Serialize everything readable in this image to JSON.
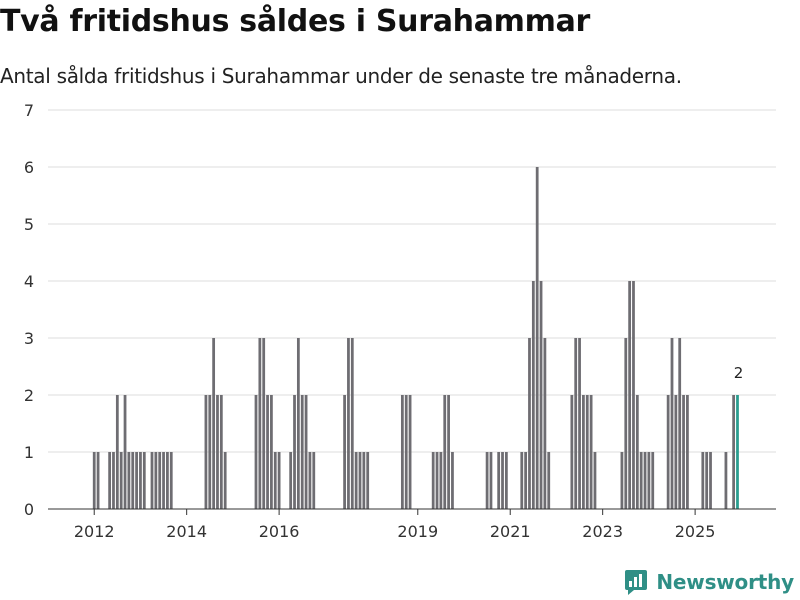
{
  "title": "Två fritidshus såldes i Surahammar",
  "subtitle": "Antal sålda fritidshus i Surahammar under de senaste tre månaderna.",
  "brand": {
    "name": "Newsworthy",
    "icon": "newsworthy-logo-icon"
  },
  "colors": {
    "bar": "#6e6d72",
    "highlight": "#2a9d8f",
    "grid": "#dcdcdc",
    "axis": "#333333"
  },
  "chart_data": {
    "type": "bar",
    "title": "",
    "xlabel": "",
    "ylabel": "",
    "ylim": [
      0,
      7
    ],
    "yticks": [
      0,
      1,
      2,
      3,
      4,
      5,
      6,
      7
    ],
    "grid": true,
    "xlim": [
      "2011-01",
      "2026-10"
    ],
    "xticks": [
      {
        "label": "2012",
        "month": "2012-01"
      },
      {
        "label": "2014",
        "month": "2014-01"
      },
      {
        "label": "2016",
        "month": "2016-01"
      },
      {
        "label": "2019",
        "month": "2019-01"
      },
      {
        "label": "2021",
        "month": "2021-01"
      },
      {
        "label": "2023",
        "month": "2023-01"
      },
      {
        "label": "2025",
        "month": "2025-01"
      }
    ],
    "series": [
      {
        "values": [
          [
            "2012-01",
            1
          ],
          [
            "2012-02",
            1
          ],
          [
            "2012-05",
            1
          ],
          [
            "2012-06",
            1
          ],
          [
            "2012-07",
            2
          ],
          [
            "2012-08",
            1
          ],
          [
            "2012-09",
            2
          ],
          [
            "2012-10",
            1
          ],
          [
            "2012-11",
            1
          ],
          [
            "2012-12",
            1
          ],
          [
            "2013-01",
            1
          ],
          [
            "2013-02",
            1
          ],
          [
            "2013-04",
            1
          ],
          [
            "2013-05",
            1
          ],
          [
            "2013-06",
            1
          ],
          [
            "2013-07",
            1
          ],
          [
            "2013-08",
            1
          ],
          [
            "2013-09",
            1
          ],
          [
            "2014-06",
            2
          ],
          [
            "2014-07",
            2
          ],
          [
            "2014-08",
            3
          ],
          [
            "2014-09",
            2
          ],
          [
            "2014-10",
            2
          ],
          [
            "2014-11",
            1
          ],
          [
            "2015-07",
            2
          ],
          [
            "2015-08",
            3
          ],
          [
            "2015-09",
            3
          ],
          [
            "2015-10",
            2
          ],
          [
            "2015-11",
            2
          ],
          [
            "2015-12",
            1
          ],
          [
            "2016-01",
            1
          ],
          [
            "2016-04",
            1
          ],
          [
            "2016-05",
            2
          ],
          [
            "2016-06",
            3
          ],
          [
            "2016-07",
            2
          ],
          [
            "2016-08",
            2
          ],
          [
            "2016-09",
            1
          ],
          [
            "2016-10",
            1
          ],
          [
            "2017-06",
            2
          ],
          [
            "2017-07",
            3
          ],
          [
            "2017-08",
            3
          ],
          [
            "2017-09",
            1
          ],
          [
            "2017-10",
            1
          ],
          [
            "2017-11",
            1
          ],
          [
            "2017-12",
            1
          ],
          [
            "2018-09",
            2
          ],
          [
            "2018-10",
            2
          ],
          [
            "2018-11",
            2
          ],
          [
            "2019-05",
            1
          ],
          [
            "2019-06",
            1
          ],
          [
            "2019-07",
            1
          ],
          [
            "2019-08",
            2
          ],
          [
            "2019-09",
            2
          ],
          [
            "2019-10",
            1
          ],
          [
            "2020-07",
            1
          ],
          [
            "2020-08",
            1
          ],
          [
            "2020-10",
            1
          ],
          [
            "2020-11",
            1
          ],
          [
            "2020-12",
            1
          ],
          [
            "2021-04",
            1
          ],
          [
            "2021-05",
            1
          ],
          [
            "2021-06",
            3
          ],
          [
            "2021-07",
            4
          ],
          [
            "2021-08",
            6
          ],
          [
            "2021-09",
            4
          ],
          [
            "2021-10",
            3
          ],
          [
            "2021-11",
            1
          ],
          [
            "2022-05",
            2
          ],
          [
            "2022-06",
            3
          ],
          [
            "2022-07",
            3
          ],
          [
            "2022-08",
            2
          ],
          [
            "2022-09",
            2
          ],
          [
            "2022-10",
            2
          ],
          [
            "2022-11",
            1
          ],
          [
            "2023-06",
            1
          ],
          [
            "2023-07",
            3
          ],
          [
            "2023-08",
            4
          ],
          [
            "2023-09",
            4
          ],
          [
            "2023-10",
            2
          ],
          [
            "2023-11",
            1
          ],
          [
            "2023-12",
            1
          ],
          [
            "2024-01",
            1
          ],
          [
            "2024-02",
            1
          ],
          [
            "2024-06",
            2
          ],
          [
            "2024-07",
            3
          ],
          [
            "2024-08",
            2
          ],
          [
            "2024-09",
            3
          ],
          [
            "2024-10",
            2
          ],
          [
            "2024-11",
            2
          ],
          [
            "2025-03",
            1
          ],
          [
            "2025-04",
            1
          ],
          [
            "2025-05",
            1
          ],
          [
            "2025-09",
            1
          ],
          [
            "2025-11",
            2
          ]
        ]
      }
    ],
    "highlight": {
      "month": "2025-12",
      "value": 2,
      "label": "2"
    }
  }
}
